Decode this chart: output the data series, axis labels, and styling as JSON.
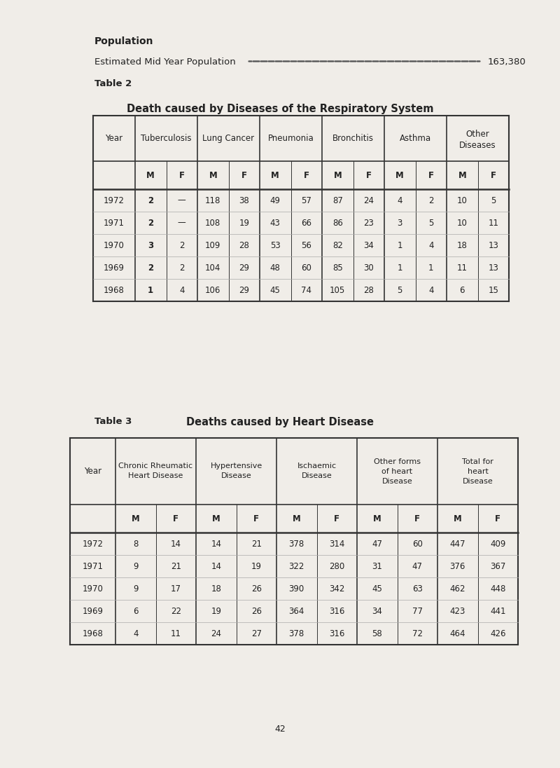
{
  "page_bg": "#f0ede8",
  "population_label": "Population",
  "pop_line": "Estimated Mid Year Population",
  "pop_value": "163,380",
  "table2_label": "Table 2",
  "table2_title": "Death caused by Diseases of the Respiratory System",
  "table2_col_headers": [
    "Year",
    "Tuberculosis",
    "Lung Cancer",
    "Pneumonia",
    "Bronchitis",
    "Asthma",
    "Other\nDiseases"
  ],
  "table2_mf_headers": [
    "M",
    "F",
    "M",
    "F",
    "M",
    "F",
    "M",
    "F",
    "M",
    "F",
    "M",
    "F"
  ],
  "table2_years": [
    "1972",
    "1971",
    "1970",
    "1969",
    "1968"
  ],
  "table2_data": [
    [
      "2",
      "—",
      "118",
      "38",
      "49",
      "57",
      "87",
      "24",
      "4",
      "2",
      "10",
      "5"
    ],
    [
      "2",
      "—",
      "108",
      "19",
      "43",
      "66",
      "86",
      "23",
      "3",
      "5",
      "10",
      "11"
    ],
    [
      "3",
      "2",
      "109",
      "28",
      "53",
      "56",
      "82",
      "34",
      "1",
      "4",
      "18",
      "13"
    ],
    [
      "2",
      "2",
      "104",
      "29",
      "48",
      "60",
      "85",
      "30",
      "1",
      "1",
      "11",
      "13"
    ],
    [
      "1",
      "4",
      "106",
      "29",
      "45",
      "74",
      "105",
      "28",
      "5",
      "4",
      "6",
      "15"
    ]
  ],
  "table2_bold_m": [
    true,
    false,
    true,
    false,
    false,
    false,
    false,
    false,
    false,
    false,
    false,
    false
  ],
  "table3_label": "Table 3",
  "table3_title": "Deaths caused by Heart Disease",
  "table3_col_headers": [
    "Year",
    "Chronic Rheumatic\nHeart Disease",
    "Hypertensive\nDisease",
    "Ischaemic\nDisease",
    "Other forms\nof heart\nDisease",
    "Total for\nheart\nDisease"
  ],
  "table3_mf_headers": [
    "M",
    "F",
    "M",
    "F",
    "M",
    "F",
    "M",
    "F",
    "M",
    "F"
  ],
  "table3_years": [
    "1972",
    "1971",
    "1970",
    "1969",
    "1968"
  ],
  "table3_data": [
    [
      "8",
      "14",
      "14",
      "21",
      "378",
      "314",
      "47",
      "60",
      "447",
      "409"
    ],
    [
      "9",
      "21",
      "14",
      "19",
      "322",
      "280",
      "31",
      "47",
      "376",
      "367"
    ],
    [
      "9",
      "17",
      "18",
      "26",
      "390",
      "342",
      "45",
      "63",
      "462",
      "448"
    ],
    [
      "6",
      "22",
      "19",
      "26",
      "364",
      "316",
      "34",
      "77",
      "423",
      "441"
    ],
    [
      "4",
      "11",
      "24",
      "27",
      "378",
      "316",
      "58",
      "72",
      "464",
      "426"
    ]
  ],
  "page_number": "42"
}
